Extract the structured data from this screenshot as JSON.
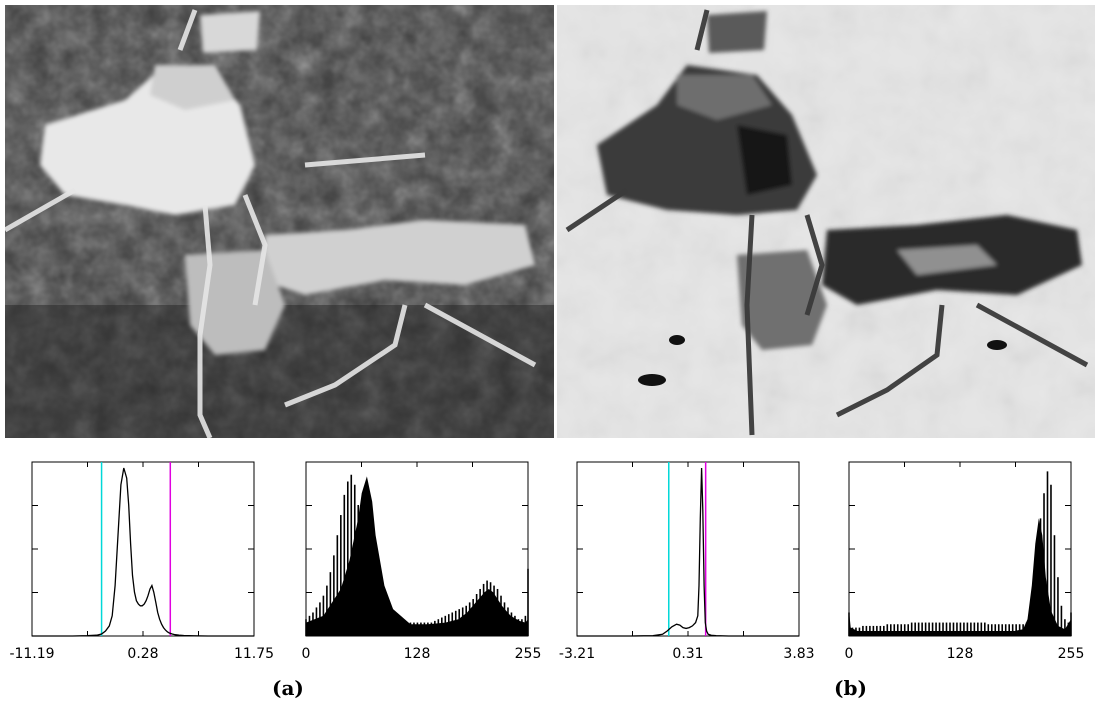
{
  "captions": {
    "a": "(a)",
    "b": "(b)"
  },
  "colors": {
    "threshold_low": "#00d8d8",
    "threshold_high": "#e000e0",
    "curve": "#000000"
  },
  "chart_data": [
    {
      "type": "line",
      "panel": "a",
      "tick_labels": [
        "-11.19",
        "0.28",
        "11.75"
      ],
      "xlim": [
        -11.19,
        11.75
      ],
      "x": [
        -11.19,
        -9,
        -7,
        -5.5,
        -4.5,
        -4,
        -3.6,
        -3.2,
        -2.9,
        -2.6,
        -2.3,
        -2.0,
        -1.7,
        -1.4,
        -1.2,
        -1.0,
        -0.8,
        -0.6,
        -0.4,
        -0.2,
        0.0,
        0.2,
        0.4,
        0.6,
        0.8,
        1.0,
        1.2,
        1.4,
        1.6,
        1.8,
        2.0,
        2.2,
        2.4,
        2.6,
        2.8,
        3.0,
        3.3,
        3.6,
        4.0,
        4.5,
        5.5,
        7,
        9,
        11.75
      ],
      "y": [
        0,
        0,
        0,
        0.002,
        0.005,
        0.012,
        0.03,
        0.06,
        0.12,
        0.3,
        0.6,
        0.9,
        1.0,
        0.94,
        0.78,
        0.55,
        0.36,
        0.26,
        0.21,
        0.19,
        0.18,
        0.18,
        0.19,
        0.21,
        0.24,
        0.28,
        0.3,
        0.26,
        0.2,
        0.14,
        0.1,
        0.07,
        0.05,
        0.035,
        0.025,
        0.018,
        0.012,
        0.008,
        0.005,
        0.003,
        0.001,
        0,
        0,
        0
      ],
      "vlines": [
        -4.0,
        3.1
      ]
    },
    {
      "type": "bar",
      "panel": "a",
      "tick_labels": [
        "0",
        "128",
        "255"
      ],
      "xlim": [
        0,
        255
      ],
      "comb_positions": [
        0,
        4,
        8,
        12,
        16,
        20,
        24,
        28,
        32,
        36,
        40,
        44,
        48,
        52,
        56,
        60,
        64,
        68,
        72,
        76,
        80,
        84,
        88,
        92,
        96,
        100,
        104,
        108,
        112,
        116,
        120,
        124,
        128,
        132,
        136,
        140,
        144,
        148,
        152,
        156,
        160,
        164,
        168,
        172,
        176,
        180,
        184,
        188,
        192,
        196,
        200,
        204,
        208,
        212,
        216,
        220,
        224,
        228,
        232,
        236,
        240,
        244,
        248,
        252,
        255
      ],
      "comb_values": [
        0.1,
        0.12,
        0.14,
        0.17,
        0.2,
        0.24,
        0.3,
        0.38,
        0.48,
        0.6,
        0.72,
        0.84,
        0.92,
        0.96,
        0.9,
        0.78,
        0.62,
        0.46,
        0.34,
        0.26,
        0.2,
        0.16,
        0.13,
        0.11,
        0.1,
        0.09,
        0.08,
        0.08,
        0.08,
        0.08,
        0.08,
        0.08,
        0.08,
        0.08,
        0.08,
        0.08,
        0.08,
        0.09,
        0.1,
        0.11,
        0.12,
        0.13,
        0.14,
        0.15,
        0.16,
        0.17,
        0.18,
        0.2,
        0.22,
        0.25,
        0.28,
        0.31,
        0.33,
        0.32,
        0.3,
        0.28,
        0.24,
        0.2,
        0.17,
        0.14,
        0.12,
        0.1,
        0.1,
        0.12,
        0.4
      ],
      "envelope_x": [
        0,
        20,
        40,
        50,
        60,
        64,
        70,
        76,
        80,
        90,
        100,
        120,
        140,
        160,
        175,
        185,
        195,
        205,
        210,
        215,
        225,
        235,
        245,
        252,
        255
      ],
      "envelope_y": [
        0.08,
        0.12,
        0.28,
        0.45,
        0.7,
        0.85,
        0.95,
        0.8,
        0.6,
        0.3,
        0.16,
        0.07,
        0.07,
        0.08,
        0.1,
        0.14,
        0.2,
        0.26,
        0.28,
        0.26,
        0.18,
        0.12,
        0.09,
        0.08,
        0.1
      ]
    },
    {
      "type": "line",
      "panel": "b",
      "tick_labels": [
        "-3.21",
        "0.31",
        "3.83"
      ],
      "xlim": [
        -3.21,
        3.83
      ],
      "x": [
        -3.21,
        -2.5,
        -1.5,
        -0.8,
        -0.5,
        -0.35,
        -0.2,
        -0.05,
        0.05,
        0.15,
        0.25,
        0.35,
        0.45,
        0.55,
        0.62,
        0.66,
        0.7,
        0.74,
        0.78,
        0.82,
        0.86,
        0.9,
        0.95,
        1.05,
        1.2,
        1.6,
        2.5,
        3.83
      ],
      "y": [
        0,
        0,
        0,
        0.002,
        0.01,
        0.03,
        0.055,
        0.07,
        0.065,
        0.05,
        0.045,
        0.05,
        0.06,
        0.08,
        0.12,
        0.3,
        0.7,
        1.0,
        0.75,
        0.3,
        0.08,
        0.03,
        0.01,
        0.004,
        0.002,
        0,
        0,
        0
      ],
      "vlines": [
        -0.3,
        0.87
      ]
    },
    {
      "type": "bar",
      "panel": "b",
      "tick_labels": [
        "0",
        "128",
        "255"
      ],
      "xlim": [
        0,
        255
      ],
      "comb_positions": [
        0,
        4,
        8,
        12,
        16,
        20,
        24,
        28,
        32,
        36,
        40,
        44,
        48,
        52,
        56,
        60,
        64,
        68,
        72,
        76,
        80,
        84,
        88,
        92,
        96,
        100,
        104,
        108,
        112,
        116,
        120,
        124,
        128,
        132,
        136,
        140,
        144,
        148,
        152,
        156,
        160,
        164,
        168,
        172,
        176,
        180,
        184,
        188,
        192,
        196,
        200,
        204,
        208,
        212,
        216,
        220,
        224,
        228,
        232,
        236,
        240,
        244,
        248,
        252,
        255
      ],
      "comb_values": [
        0.14,
        0.05,
        0.05,
        0.05,
        0.06,
        0.06,
        0.06,
        0.06,
        0.06,
        0.06,
        0.06,
        0.07,
        0.07,
        0.07,
        0.07,
        0.07,
        0.07,
        0.07,
        0.08,
        0.08,
        0.08,
        0.08,
        0.08,
        0.08,
        0.08,
        0.08,
        0.08,
        0.08,
        0.08,
        0.08,
        0.08,
        0.08,
        0.08,
        0.08,
        0.08,
        0.08,
        0.08,
        0.08,
        0.08,
        0.08,
        0.07,
        0.07,
        0.07,
        0.07,
        0.07,
        0.07,
        0.07,
        0.07,
        0.07,
        0.07,
        0.07,
        0.08,
        0.1,
        0.2,
        0.45,
        0.7,
        0.85,
        0.98,
        0.9,
        0.6,
        0.35,
        0.18,
        0.1,
        0.08,
        0.14
      ],
      "envelope_x": [
        0,
        2,
        10,
        40,
        80,
        120,
        160,
        190,
        200,
        205,
        210,
        214,
        218,
        222,
        226,
        232,
        240,
        248,
        255
      ],
      "envelope_y": [
        0.15,
        0.05,
        0.03,
        0.03,
        0.03,
        0.03,
        0.03,
        0.03,
        0.04,
        0.1,
        0.3,
        0.55,
        0.7,
        0.6,
        0.35,
        0.15,
        0.06,
        0.04,
        0.1
      ]
    }
  ]
}
